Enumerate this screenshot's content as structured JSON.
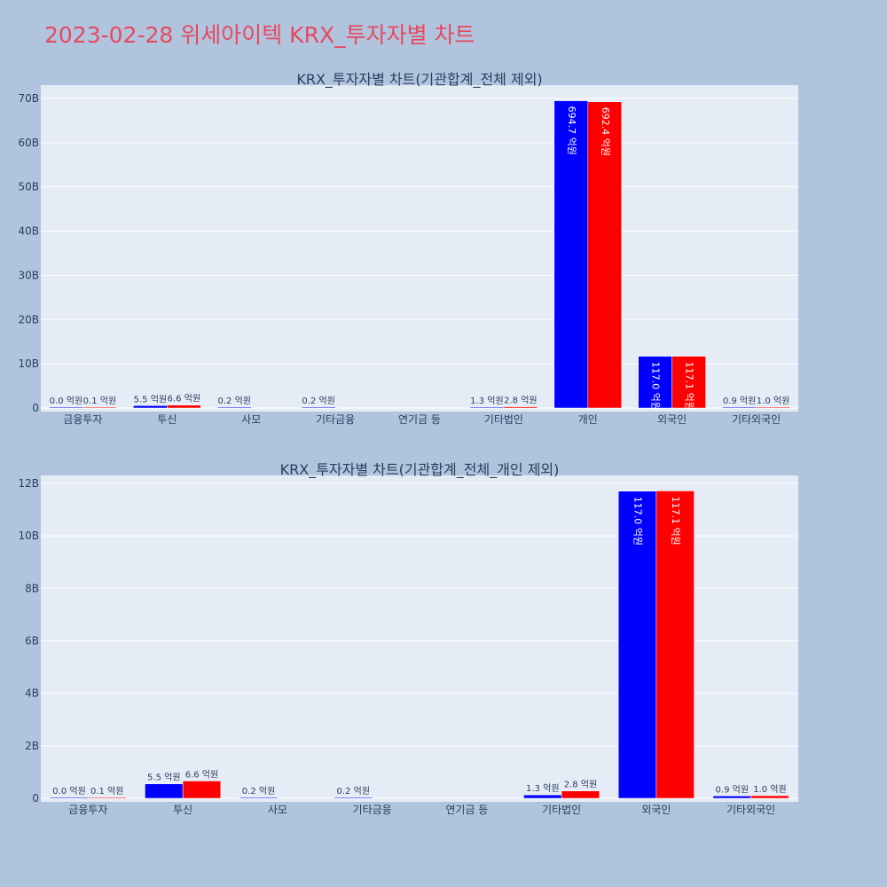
{
  "page": {
    "title": "2023-02-28 위세아이텍 KRX_투자자별 차트"
  },
  "colors": {
    "background": "#b0c4de",
    "plot_bg": "#e5ecf6",
    "gridline": "#ffffff",
    "title": "#e8485f",
    "text": "#2a3f5f",
    "series_sell": "#0000ff",
    "series_buy": "#ff0000"
  },
  "chart_data": [
    {
      "type": "bar",
      "title": "KRX_투자자별 차트(기관합계_전체 제외)",
      "categories": [
        "금융투자",
        "투신",
        "사모",
        "기타금융",
        "연기금 등",
        "기타법인",
        "개인",
        "외국인",
        "기타외국인"
      ],
      "series": [
        {
          "color": "#0000ff",
          "values": [
            0.0,
            0.55,
            0.02,
            0.02,
            null,
            0.13,
            69.47,
            11.7,
            0.09
          ],
          "labels": [
            "0.0 억원",
            "5.5 억원",
            "0.2 억원",
            "0.2 억원",
            "",
            "1.3 억원",
            "694.7 억원",
            "117.0 억원",
            "0.9 억원"
          ]
        },
        {
          "color": "#ff0000",
          "values": [
            0.01,
            0.66,
            null,
            null,
            null,
            0.28,
            69.24,
            11.71,
            0.1
          ],
          "labels": [
            "0.1 억원",
            "6.6 억원",
            "",
            "",
            "",
            "2.8 억원",
            "692.4 억원",
            "117.1 억원",
            "1.0 억원"
          ]
        }
      ],
      "yunit": "B",
      "ylim": [
        0,
        73
      ],
      "yticks": [
        0,
        10,
        20,
        30,
        40,
        50,
        60,
        70
      ],
      "grid": true,
      "legend": "none"
    },
    {
      "type": "bar",
      "title": "KRX_투자자별 차트(기관합계_전체_개인 제외)",
      "categories": [
        "금융투자",
        "투신",
        "사모",
        "기타금융",
        "연기금 등",
        "기타법인",
        "외국인",
        "기타외국인"
      ],
      "series": [
        {
          "color": "#0000ff",
          "values": [
            0.0,
            0.55,
            0.02,
            0.02,
            null,
            0.13,
            11.7,
            0.09
          ],
          "labels": [
            "0.0 억원",
            "5.5 억원",
            "0.2 억원",
            "0.2 억원",
            "",
            "1.3 억원",
            "117.0 억원",
            "0.9 억원"
          ]
        },
        {
          "color": "#ff0000",
          "values": [
            0.01,
            0.66,
            null,
            null,
            null,
            0.28,
            11.71,
            0.1
          ],
          "labels": [
            "0.1 억원",
            "6.6 억원",
            "",
            "",
            "",
            "2.8 억원",
            "117.1 억원",
            "1.0 억원"
          ]
        }
      ],
      "yunit": "B",
      "ylim": [
        0,
        12.3
      ],
      "yticks": [
        0,
        2,
        4,
        6,
        8,
        10,
        12
      ],
      "grid": true,
      "legend": "none"
    }
  ]
}
